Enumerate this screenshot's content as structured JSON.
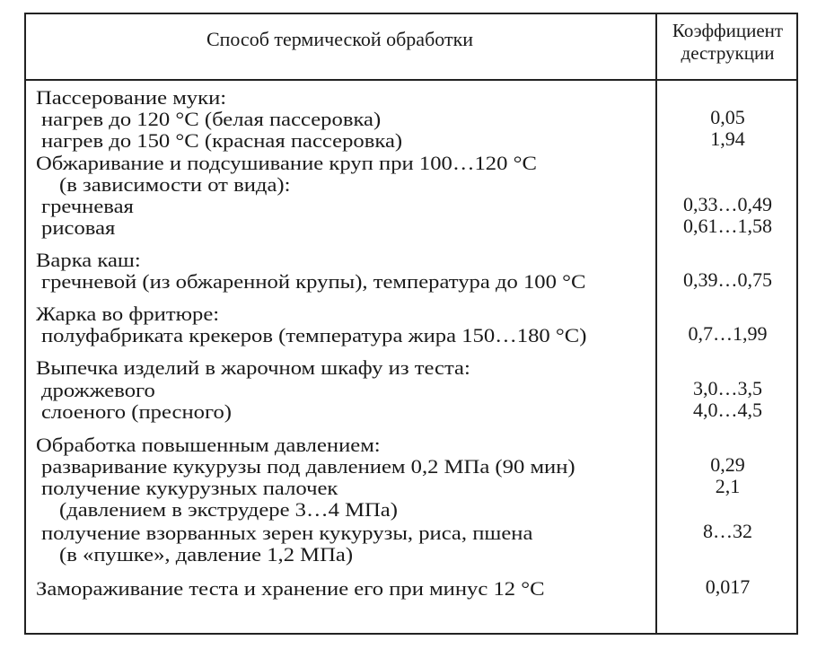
{
  "header": {
    "method_column": "Способ термической обработки",
    "coefficient_column": "Коэффициент деструкции"
  },
  "rows": [
    {
      "text": "Пассерование муки:",
      "value": ""
    },
    {
      "text": "нагрев до 120 °C (белая пассеровка)",
      "value": "0,05"
    },
    {
      "text": "нагрев до 150 °C (красная пассеровка)",
      "value": "1,94"
    },
    {
      "text": "Обжаривание и подсушивание круп при 100…120 °C",
      "value": ""
    },
    {
      "text": "(в зависимости от вида):",
      "value": ""
    },
    {
      "text": "гречневая",
      "value": "0,33…0,49"
    },
    {
      "text": "рисовая",
      "value": "0,61…1,58"
    },
    {
      "text": "Варка каш:",
      "value": ""
    },
    {
      "text": "гречневой (из обжаренной крупы), температура до 100 °C",
      "value": "0,39…0,75"
    },
    {
      "text": "Жарка во фритюре:",
      "value": ""
    },
    {
      "text": "полуфабриката крекеров (температура жира 150…180 °C)",
      "value": "0,7…1,99"
    },
    {
      "text": "Выпечка изделий в жарочном шкафу из теста:",
      "value": ""
    },
    {
      "text": "дрожжевого",
      "value": "3,0…3,5"
    },
    {
      "text": "слоеного (пресного)",
      "value": "4,0…4,5"
    },
    {
      "text": "Обработка повышенным давлением:",
      "value": ""
    },
    {
      "text": "разваривание кукурузы под давлением 0,2 МПа (90 мин)",
      "value": "0,29"
    },
    {
      "text": "получение кукурузных палочек",
      "value": "2,1"
    },
    {
      "text": "(давлением в экструдере 3…4 МПа)",
      "value": ""
    },
    {
      "text": "получение взорванных зерен кукурузы, риса, пшена",
      "value": "8…32"
    },
    {
      "text": "(в «пушке», давление 1,2 МПа)",
      "value": ""
    },
    {
      "text": "Замораживание теста и хранение его при минус 12 °C",
      "value": "0,017"
    }
  ]
}
